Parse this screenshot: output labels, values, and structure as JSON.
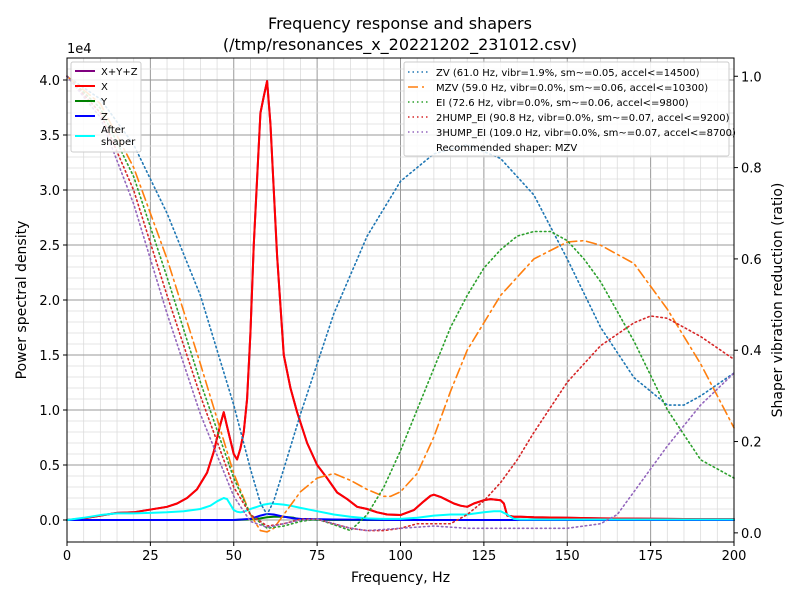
{
  "chart_data": {
    "type": "line",
    "title_line1": "Frequency response and shapers",
    "title_line2": "(/tmp/resonances_x_20221202_231012.csv)",
    "xlabel": "Frequency, Hz",
    "ylabel": "Power spectral density",
    "y2label": "Shaper vibration reduction (ratio)",
    "y_offset_text": "1e4",
    "xlim": [
      0,
      200
    ],
    "ylim": [
      -2000,
      42000
    ],
    "y2lim": [
      -0.02,
      1.04
    ],
    "xticks": [
      0,
      25,
      50,
      75,
      100,
      125,
      150,
      175,
      200
    ],
    "xtick_labels": [
      "0",
      "25",
      "50",
      "75",
      "100",
      "125",
      "150",
      "175",
      "200"
    ],
    "yticks": [
      0,
      5000,
      10000,
      15000,
      20000,
      25000,
      30000,
      35000,
      40000
    ],
    "ytick_labels": [
      "0.0",
      "0.5",
      "1.0",
      "1.5",
      "2.0",
      "2.5",
      "3.0",
      "3.5",
      "4.0"
    ],
    "y2ticks": [
      0,
      0.2,
      0.4,
      0.6,
      0.8,
      1.0
    ],
    "y2tick_labels": [
      "0.0",
      "0.2",
      "0.4",
      "0.6",
      "0.8",
      "1.0"
    ],
    "grid": true,
    "psd_legend_placement": "upper-left",
    "shaper_legend_placement": "upper-right",
    "recommended_text": "Recommended shaper: MZV",
    "psd_series": [
      {
        "name": "X+Y+Z",
        "color": "#800080",
        "style": "solid",
        "x": [
          0,
          5,
          10,
          15,
          20,
          25,
          30,
          33,
          36,
          39,
          42,
          44,
          46,
          47,
          48,
          50,
          51,
          52,
          53,
          54,
          55,
          56,
          57,
          58,
          59,
          60,
          61,
          62,
          63,
          65,
          67,
          69,
          72,
          75,
          78,
          81,
          84,
          87,
          90,
          93,
          96,
          100,
          104,
          107,
          109,
          110,
          112,
          114,
          116,
          118,
          120,
          122,
          125,
          127,
          130,
          131,
          132,
          133,
          134,
          136,
          140,
          150,
          160,
          170,
          180,
          190,
          200
        ],
        "y": [
          0,
          150,
          400,
          650,
          700,
          950,
          1200,
          1500,
          2000,
          2800,
          4300,
          6200,
          8700,
          9800,
          8500,
          6000,
          5500,
          6500,
          8000,
          11000,
          17000,
          25000,
          31000,
          37000,
          38500,
          39900,
          36000,
          30000,
          24000,
          15000,
          12000,
          9800,
          7000,
          5000,
          3800,
          2500,
          1900,
          1200,
          1000,
          700,
          500,
          450,
          900,
          1700,
          2200,
          2300,
          2100,
          1800,
          1500,
          1300,
          1200,
          1500,
          1800,
          1900,
          1800,
          1500,
          400,
          350,
          300,
          300,
          250,
          200,
          150,
          120,
          100,
          80,
          80
        ]
      },
      {
        "name": "X",
        "color": "#ff0000",
        "style": "solid",
        "x": [
          0,
          5,
          10,
          15,
          20,
          25,
          30,
          33,
          36,
          39,
          42,
          44,
          46,
          47,
          48,
          50,
          51,
          52,
          53,
          54,
          55,
          56,
          57,
          58,
          59,
          60,
          61,
          62,
          63,
          65,
          67,
          69,
          72,
          75,
          78,
          81,
          84,
          87,
          90,
          93,
          96,
          100,
          104,
          107,
          109,
          110,
          112,
          114,
          116,
          118,
          120,
          122,
          125,
          127,
          130,
          131,
          132,
          133,
          134,
          136,
          140,
          150,
          160,
          170,
          180,
          190,
          200
        ],
        "y": [
          0,
          150,
          400,
          650,
          700,
          950,
          1200,
          1500,
          2000,
          2800,
          4300,
          6200,
          8700,
          9800,
          8500,
          6000,
          5500,
          6500,
          8000,
          11000,
          17000,
          25000,
          31000,
          37000,
          38500,
          39900,
          36000,
          30000,
          24000,
          15000,
          12000,
          9800,
          7000,
          5000,
          3800,
          2500,
          1900,
          1200,
          1000,
          700,
          500,
          450,
          900,
          1700,
          2200,
          2300,
          2100,
          1800,
          1500,
          1300,
          1200,
          1500,
          1800,
          1900,
          1800,
          1500,
          400,
          350,
          300,
          300,
          250,
          200,
          150,
          120,
          100,
          80,
          80
        ]
      },
      {
        "name": "Y",
        "color": "#008000",
        "style": "solid",
        "x": [
          0,
          50,
          55,
          58,
          60,
          62,
          65,
          68,
          70,
          80,
          100,
          150,
          200
        ],
        "y": [
          0,
          0,
          50,
          150,
          250,
          300,
          300,
          200,
          50,
          0,
          0,
          0,
          0
        ]
      },
      {
        "name": "Z",
        "color": "#0000ff",
        "style": "solid",
        "x": [
          0,
          50,
          55,
          58,
          60,
          62,
          65,
          68,
          70,
          80,
          100,
          150,
          200
        ],
        "y": [
          0,
          0,
          100,
          400,
          550,
          500,
          300,
          150,
          100,
          50,
          0,
          0,
          0
        ]
      },
      {
        "name": "After\nshaper",
        "color": "#00ffff",
        "style": "solid",
        "x": [
          0,
          5,
          10,
          15,
          20,
          25,
          30,
          35,
          40,
          43,
          45,
          47,
          48,
          49,
          50,
          51,
          52,
          53,
          55,
          57,
          59,
          61,
          63,
          65,
          67,
          70,
          75,
          80,
          85,
          90,
          95,
          100,
          105,
          110,
          115,
          120,
          125,
          128,
          130,
          132,
          134,
          136,
          140,
          150,
          160,
          170,
          180,
          190,
          200
        ],
        "y": [
          0,
          200,
          450,
          600,
          600,
          650,
          700,
          800,
          1000,
          1300,
          1700,
          2000,
          1900,
          1400,
          900,
          750,
          700,
          750,
          1000,
          1200,
          1400,
          1500,
          1450,
          1400,
          1300,
          1100,
          800,
          500,
          300,
          150,
          100,
          100,
          200,
          400,
          500,
          500,
          700,
          800,
          800,
          500,
          100,
          50,
          50,
          50,
          50,
          50,
          50,
          50,
          50
        ]
      }
    ],
    "shaper_series": [
      {
        "name": "ZV (61.0 Hz, vibr=1.9%, sm~=0.05, accel<=14500)",
        "color": "#1f77b4",
        "style": "dotted",
        "x": [
          0,
          10,
          20,
          30,
          40,
          50,
          55,
          58,
          60,
          62,
          65,
          70,
          80,
          90,
          100,
          110,
          120,
          130,
          140,
          150,
          160,
          170,
          180,
          185,
          190,
          200
        ],
        "y": [
          1.0,
          0.95,
          0.85,
          0.7,
          0.52,
          0.28,
          0.14,
          0.065,
          0.04,
          0.07,
          0.14,
          0.26,
          0.48,
          0.65,
          0.77,
          0.83,
          0.85,
          0.82,
          0.74,
          0.6,
          0.45,
          0.34,
          0.28,
          0.28,
          0.3,
          0.35
        ]
      },
      {
        "name": "MZV (59.0 Hz, vibr=0.0%, sm~=0.06, accel<=10300)",
        "color": "#ff7f0e",
        "style": "dashdot",
        "x": [
          0,
          10,
          20,
          30,
          40,
          50,
          55,
          58,
          60,
          62,
          65,
          70,
          75,
          80,
          85,
          90,
          95,
          97,
          100,
          105,
          110,
          115,
          120,
          130,
          140,
          150,
          155,
          160,
          170,
          180,
          190,
          200
        ],
        "y": [
          1.0,
          0.94,
          0.8,
          0.6,
          0.37,
          0.13,
          0.04,
          0.005,
          0.002,
          0.01,
          0.04,
          0.09,
          0.12,
          0.13,
          0.115,
          0.095,
          0.08,
          0.08,
          0.09,
          0.13,
          0.21,
          0.31,
          0.4,
          0.52,
          0.6,
          0.637,
          0.64,
          0.63,
          0.59,
          0.49,
          0.37,
          0.23
        ]
      },
      {
        "name": "EI (72.6 Hz, vibr=0.0%, sm~=0.06, accel<=9800)",
        "color": "#2ca02c",
        "style": "dotted",
        "x": [
          0,
          10,
          20,
          30,
          40,
          50,
          55,
          60,
          65,
          70,
          75,
          80,
          85,
          90,
          95,
          100,
          105,
          110,
          115,
          120,
          125,
          130,
          135,
          140,
          145,
          150,
          155,
          160,
          170,
          180,
          190,
          200
        ],
        "y": [
          1.0,
          0.93,
          0.78,
          0.56,
          0.33,
          0.12,
          0.04,
          0.01,
          0.015,
          0.025,
          0.03,
          0.018,
          0.005,
          0.04,
          0.1,
          0.18,
          0.27,
          0.36,
          0.45,
          0.52,
          0.58,
          0.62,
          0.65,
          0.66,
          0.66,
          0.64,
          0.6,
          0.55,
          0.42,
          0.27,
          0.16,
          0.12
        ]
      },
      {
        "name": "2HUMP_EI (90.8 Hz, vibr=0.0%, sm~=0.07, accel<=9200)",
        "color": "#d62728",
        "style": "dotted",
        "x": [
          0,
          10,
          20,
          30,
          40,
          50,
          55,
          60,
          65,
          70,
          75,
          80,
          85,
          90,
          95,
          100,
          105,
          110,
          115,
          120,
          125,
          130,
          135,
          140,
          150,
          160,
          170,
          175,
          180,
          190,
          200
        ],
        "y": [
          1.0,
          0.92,
          0.75,
          0.52,
          0.3,
          0.1,
          0.04,
          0.015,
          0.02,
          0.03,
          0.03,
          0.02,
          0.01,
          0.005,
          0.005,
          0.01,
          0.02,
          0.02,
          0.02,
          0.04,
          0.07,
          0.11,
          0.16,
          0.22,
          0.33,
          0.41,
          0.46,
          0.475,
          0.47,
          0.43,
          0.38
        ]
      },
      {
        "name": "3HUMP_EI (109.0 Hz, vibr=0.0%, sm~=0.07, accel<=8700)",
        "color": "#9467bd",
        "style": "dotted",
        "x": [
          0,
          10,
          20,
          30,
          40,
          50,
          55,
          60,
          65,
          70,
          75,
          80,
          85,
          90,
          100,
          110,
          120,
          130,
          140,
          150,
          160,
          165,
          170,
          180,
          190,
          200
        ],
        "y": [
          1.0,
          0.91,
          0.72,
          0.48,
          0.26,
          0.08,
          0.025,
          0.012,
          0.02,
          0.028,
          0.03,
          0.02,
          0.01,
          0.005,
          0.01,
          0.015,
          0.01,
          0.01,
          0.01,
          0.01,
          0.02,
          0.04,
          0.09,
          0.19,
          0.28,
          0.35
        ]
      }
    ]
  }
}
